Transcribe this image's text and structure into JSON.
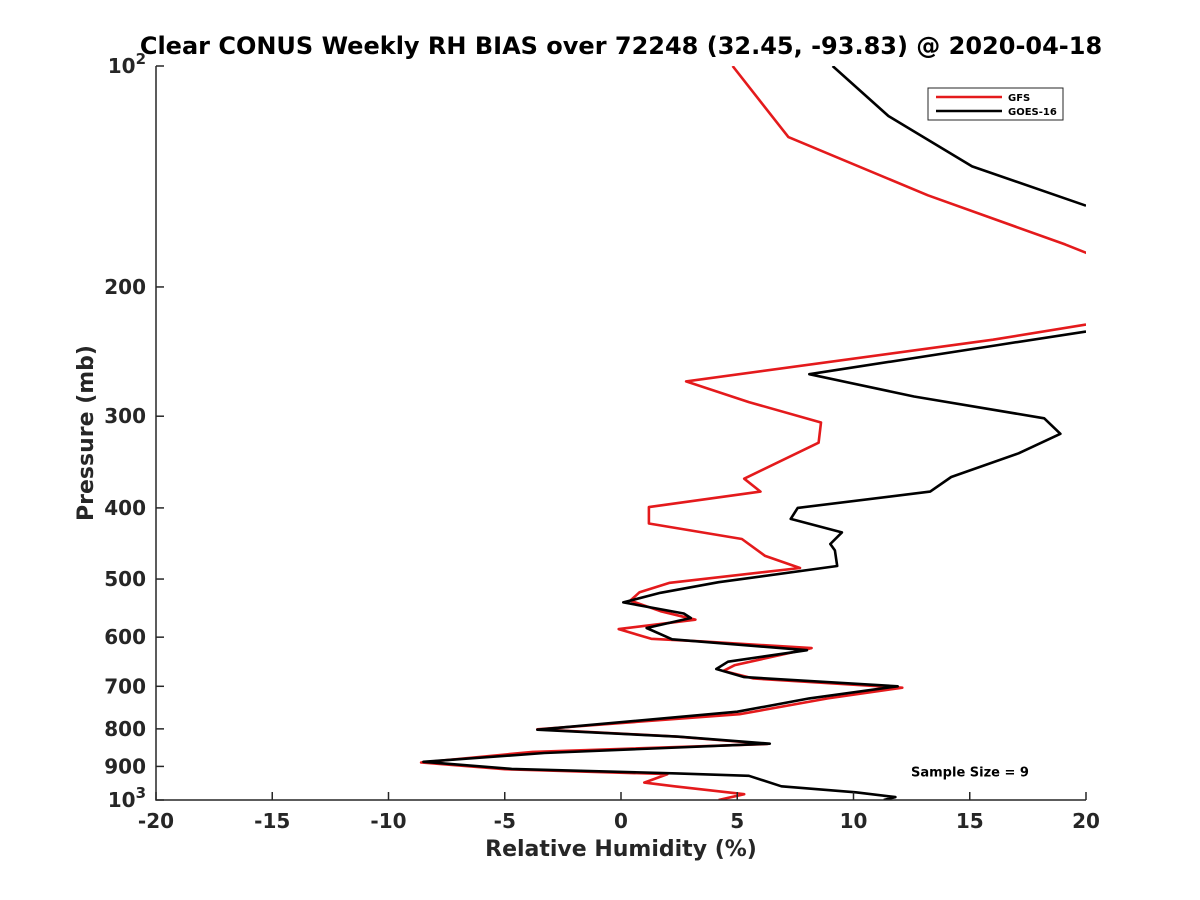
{
  "chart_data": {
    "type": "line",
    "title": "Clear CONUS Weekly RH BIAS over 72248 (32.45, -93.83) @ 2020-04-18",
    "xlabel": "Relative Humidity (%)",
    "ylabel": "Pressure (mb)",
    "xlim": [
      -20,
      20
    ],
    "ylim": [
      100,
      1000
    ],
    "yscale": "log",
    "y_reversed": true,
    "grid": false,
    "legend_position": "top-right",
    "x_ticks": [
      {
        "value": -20,
        "label": "-20"
      },
      {
        "value": -15,
        "label": "-15"
      },
      {
        "value": -10,
        "label": "-10"
      },
      {
        "value": -5,
        "label": "-5"
      },
      {
        "value": 0,
        "label": "0"
      },
      {
        "value": 5,
        "label": "5"
      },
      {
        "value": 10,
        "label": "10"
      },
      {
        "value": 15,
        "label": "15"
      },
      {
        "value": 20,
        "label": "20"
      }
    ],
    "y_ticks": [
      {
        "value": 100,
        "label": "10",
        "sup": "2"
      },
      {
        "value": 200,
        "label": "200"
      },
      {
        "value": 300,
        "label": "300"
      },
      {
        "value": 400,
        "label": "400"
      },
      {
        "value": 500,
        "label": "500"
      },
      {
        "value": 600,
        "label": "600"
      },
      {
        "value": 700,
        "label": "700"
      },
      {
        "value": 800,
        "label": "800"
      },
      {
        "value": 900,
        "label": "900"
      },
      {
        "value": 1000,
        "label": "10",
        "sup": "3"
      }
    ],
    "series": [
      {
        "name": "GFS",
        "color": "#e41a1c",
        "points": [
          [
            4.8,
            100
          ],
          [
            7.2,
            125
          ],
          [
            13.2,
            150
          ],
          [
            19.1,
            175
          ],
          [
            21.0,
            185
          ],
          [
            null,
            210
          ],
          [
            20.0,
            225
          ],
          [
            16.0,
            236
          ],
          [
            2.8,
            269
          ],
          [
            5.5,
            287
          ],
          [
            8.6,
            306
          ],
          [
            8.5,
            326
          ],
          [
            5.3,
            365
          ],
          [
            6.0,
            380
          ],
          [
            1.2,
            399
          ],
          [
            1.2,
            420
          ],
          [
            5.2,
            441
          ],
          [
            6.2,
            465
          ],
          [
            7.7,
            483
          ],
          [
            2.1,
            506
          ],
          [
            0.8,
            521
          ],
          [
            0.4,
            535
          ],
          [
            1.7,
            553
          ],
          [
            3.2,
            568
          ],
          [
            -0.1,
            585
          ],
          [
            1.3,
            603
          ],
          [
            3.5,
            608
          ],
          [
            8.2,
            621
          ],
          [
            4.9,
            655
          ],
          [
            4.4,
            667
          ],
          [
            5.7,
            683
          ],
          [
            12.1,
            703
          ],
          [
            8.9,
            727
          ],
          [
            5.1,
            764
          ],
          [
            -3.6,
            801
          ],
          [
            2.3,
            819
          ],
          [
            6.3,
            839
          ],
          [
            -3.8,
            860
          ],
          [
            -8.6,
            889
          ],
          [
            -5.0,
            908
          ],
          [
            2.0,
            922
          ],
          [
            1.0,
            947
          ],
          [
            2.3,
            958
          ],
          [
            5.3,
            982
          ],
          [
            4.2,
            1000
          ]
        ]
      },
      {
        "name": "GOES-16",
        "color": "#000000",
        "points": [
          [
            9.1,
            100
          ],
          [
            11.5,
            117
          ],
          [
            15.1,
            137
          ],
          [
            20.0,
            155
          ],
          [
            null,
            210
          ],
          [
            20.0,
            230
          ],
          [
            16.2,
            240
          ],
          [
            8.1,
            263
          ],
          [
            12.6,
            282
          ],
          [
            18.2,
            302
          ],
          [
            18.9,
            317
          ],
          [
            17.1,
            337
          ],
          [
            14.2,
            363
          ],
          [
            13.3,
            380
          ],
          [
            7.6,
            400
          ],
          [
            7.3,
            414
          ],
          [
            9.5,
            432
          ],
          [
            9.0,
            448
          ],
          [
            9.2,
            457
          ],
          [
            9.3,
            480
          ],
          [
            4.2,
            505
          ],
          [
            1.7,
            522
          ],
          [
            0.1,
            538
          ],
          [
            2.7,
            557
          ],
          [
            3.0,
            565
          ],
          [
            1.1,
            583
          ],
          [
            2.2,
            604
          ],
          [
            8.0,
            625
          ],
          [
            4.6,
            648
          ],
          [
            4.1,
            663
          ],
          [
            5.3,
            680
          ],
          [
            11.9,
            700
          ],
          [
            8.1,
            727
          ],
          [
            5.0,
            758
          ],
          [
            -3.6,
            802
          ],
          [
            2.5,
            820
          ],
          [
            6.4,
            838
          ],
          [
            -3.3,
            863
          ],
          [
            -8.5,
            887
          ],
          [
            -4.7,
            907
          ],
          [
            2.4,
            920
          ],
          [
            5.5,
            927
          ],
          [
            6.9,
            958
          ],
          [
            10.1,
            976
          ],
          [
            11.8,
            991
          ],
          [
            11.3,
            1000
          ]
        ]
      }
    ],
    "annotations": [
      {
        "text": "Sample Size = 9",
        "x": 15,
        "y": 915
      }
    ]
  }
}
